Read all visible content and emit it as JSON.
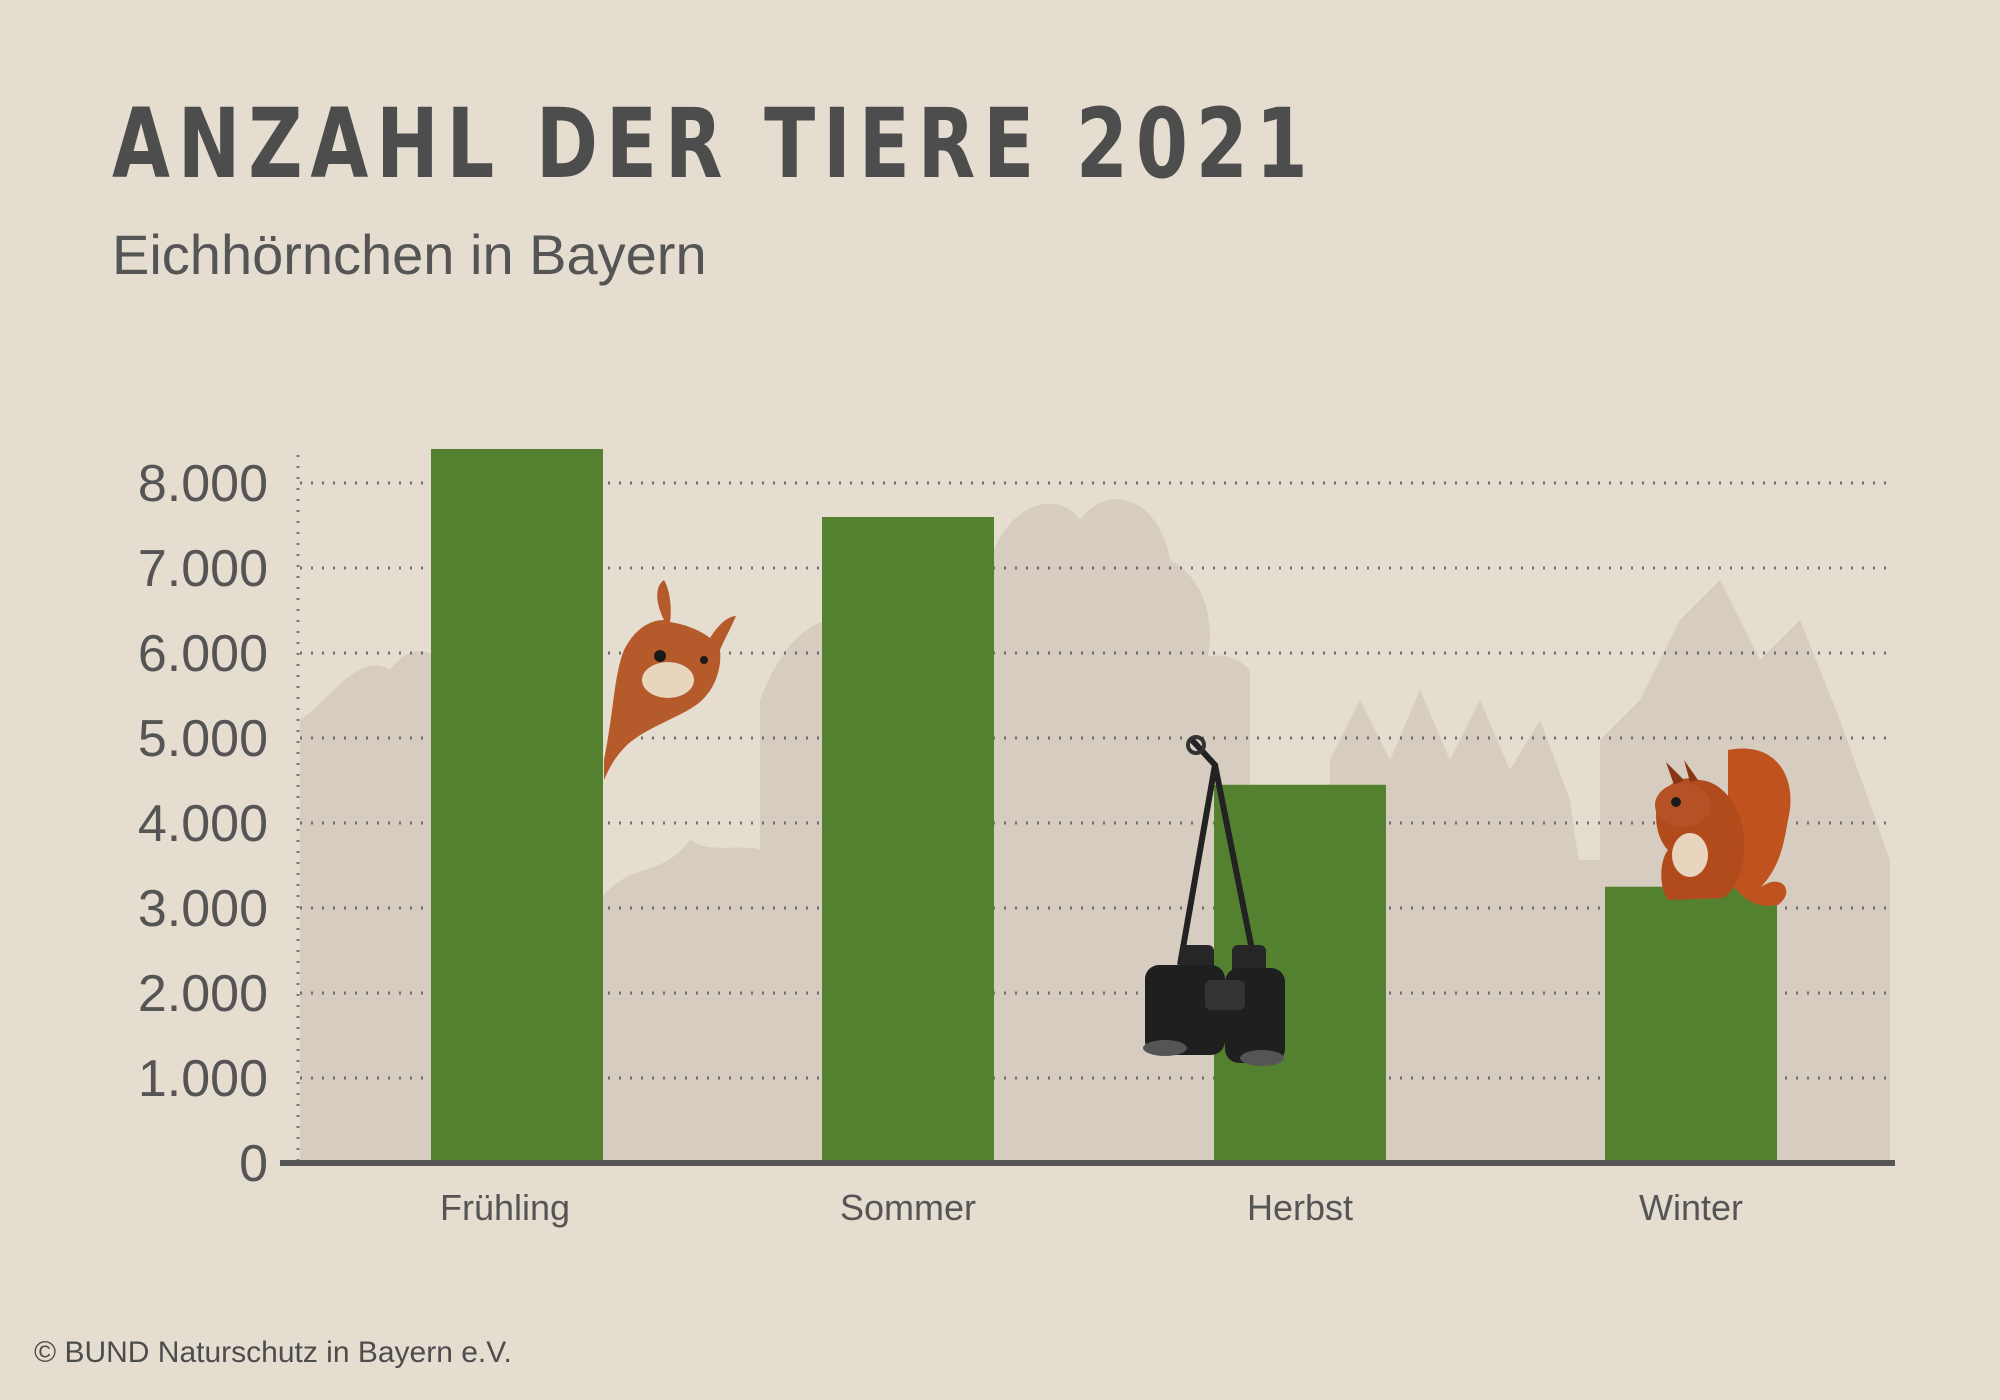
{
  "header": {
    "title": "ANZAHL DER TIERE 2021",
    "subtitle": "Eichhörnchen in Bayern"
  },
  "footer": {
    "copyright": "© BUND Naturschutz in Bayern e.V."
  },
  "colors": {
    "background": "#e6ddd1",
    "bar": "#548130",
    "text": "#4d4d4d",
    "silhouette": "#d5cbbf"
  },
  "chart_data": {
    "type": "bar",
    "categories": [
      "Frühling",
      "Sommer",
      "Herbst",
      "Winter"
    ],
    "values": [
      8400,
      7600,
      4450,
      3250
    ],
    "ylim": [
      0,
      8500
    ],
    "yticks": [
      0,
      1000,
      2000,
      3000,
      4000,
      5000,
      6000,
      7000,
      8000
    ],
    "ytick_labels": [
      "0",
      "1.000",
      "2.000",
      "3.000",
      "4.000",
      "5.000",
      "6.000",
      "7.000",
      "8.000"
    ],
    "grid": true,
    "legend": "none",
    "decorations": [
      "squirrel-peeking-icon",
      "binoculars-icon",
      "squirrel-sitting-icon",
      "forest-silhouette"
    ]
  }
}
